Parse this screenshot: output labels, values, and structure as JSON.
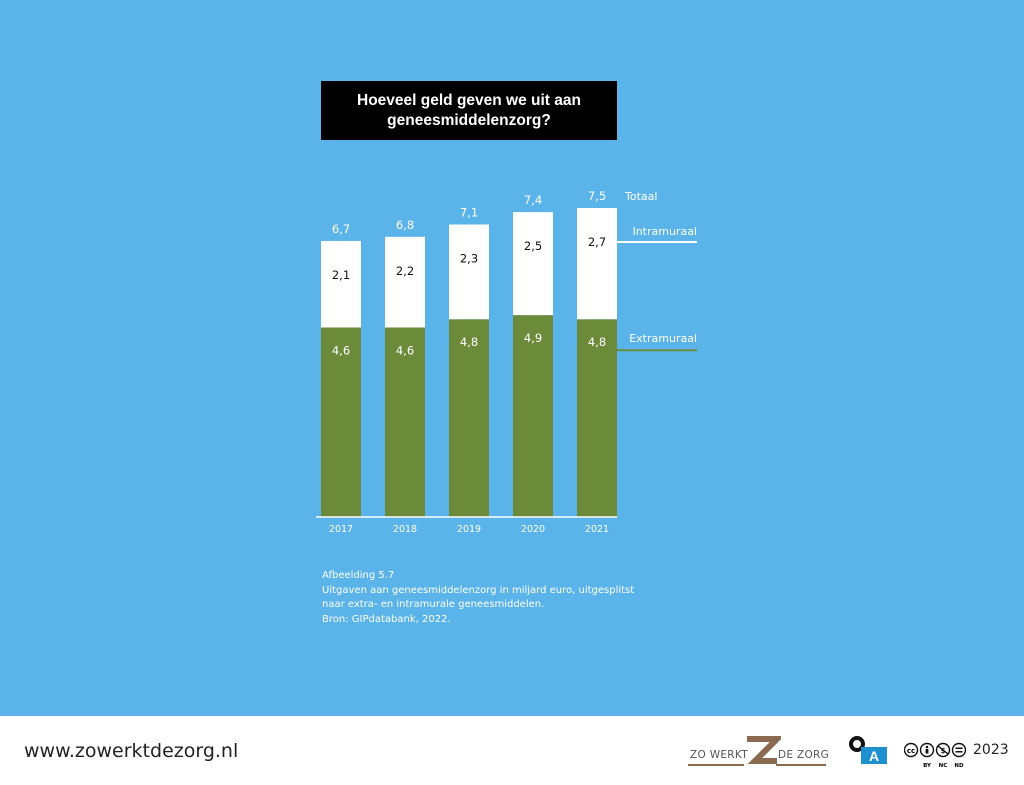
{
  "title_lines": [
    "Hoeveel geld geven we uit aan",
    "geneesmiddelenzorg?"
  ],
  "chart_data": {
    "type": "bar",
    "stacked": true,
    "categories": [
      "2017",
      "2018",
      "2019",
      "2020",
      "2021"
    ],
    "series": [
      {
        "name": "Extramuraal",
        "values": [
          4.6,
          4.6,
          4.8,
          4.9,
          4.8
        ],
        "labels": [
          "4,6",
          "4,6",
          "4,8",
          "4,9",
          "4,8"
        ],
        "color": "#6b8a3a"
      },
      {
        "name": "Intramuraal",
        "values": [
          2.1,
          2.2,
          2.3,
          2.5,
          2.7
        ],
        "labels": [
          "2,1",
          "2,2",
          "2,3",
          "2,5",
          "2,7"
        ],
        "color": "#ffffff"
      }
    ],
    "totals": {
      "name": "Totaal",
      "values": [
        6.7,
        6.8,
        7.1,
        7.4,
        7.5
      ],
      "labels": [
        "6,7",
        "6,8",
        "7,1",
        "7,4",
        "7,5"
      ]
    },
    "ylim": [
      0,
      7.5
    ],
    "grid": false,
    "legend": "right"
  },
  "caption": {
    "figure": "Afbeelding 5.7",
    "lines": [
      "Uitgaven aan geneesmiddelenzorg in miljard euro, uitgesplitst",
      "naar extra- en intramurale geneesmiddelen."
    ],
    "source": "Bron: GIPdatabank, 2022."
  },
  "footer": {
    "url": "www.zowerktdezorg.nl",
    "logo_left": "ZO WERKT",
    "logo_right": "DE ZORG",
    "logo_letter": "Z",
    "oa_letter": "A",
    "license": [
      "BY",
      "NC",
      "ND"
    ],
    "year": "2023"
  },
  "colors": {
    "background": "#5ab4ea",
    "extramuraal": "#6b8a3a",
    "intramuraal": "#ffffff",
    "title_bg": "#000000",
    "logo_brown": "#8a6a50",
    "oa_blue": "#1e90d0"
  }
}
